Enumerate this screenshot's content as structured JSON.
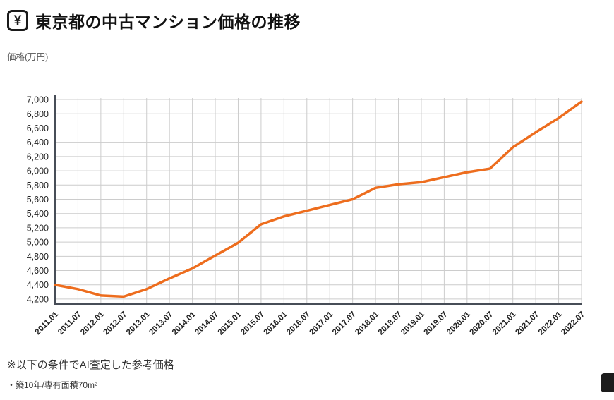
{
  "header": {
    "yen_symbol": "¥",
    "title": "東京都の中古マンション価格の推移"
  },
  "chart_data": {
    "type": "line",
    "title": "東京都の中古マンション価格の推移",
    "ylabel": "価格(万円)",
    "xlabel": "",
    "grid": true,
    "legend_position": "none",
    "ylim": [
      4130,
      7060
    ],
    "yticks": [
      4200,
      4400,
      4600,
      4800,
      5000,
      5200,
      5400,
      5600,
      5800,
      6000,
      6200,
      6400,
      6600,
      6800,
      7000
    ],
    "x": [
      "2011.01",
      "2011.07",
      "2012.01",
      "2012.07",
      "2013.01",
      "2013.07",
      "2014.01",
      "2014.07",
      "2015.01",
      "2015.07",
      "2016.01",
      "2016.07",
      "2017.01",
      "2017.07",
      "2018.01",
      "2018.07",
      "2019.01",
      "2019.07",
      "2020.01",
      "2020.07",
      "2021.01",
      "2021.07",
      "2022.01",
      "2022.07"
    ],
    "series": [
      {
        "name": "価格",
        "color": "#ed6d1e",
        "values": [
          4400,
          4340,
          4250,
          4235,
          4340,
          4490,
          4630,
          4810,
          4990,
          5250,
          5360,
          5440,
          5520,
          5600,
          5760,
          5810,
          5840,
          5910,
          5980,
          6030,
          6330,
          6540,
          6740,
          6970
        ]
      }
    ],
    "axis_color": "#474d57",
    "grid_color": "#cccccc"
  },
  "footnotes": {
    "condition": "※以下の条件でAI査定した参考価格",
    "detail": "・築10年/専有面積70m²"
  }
}
